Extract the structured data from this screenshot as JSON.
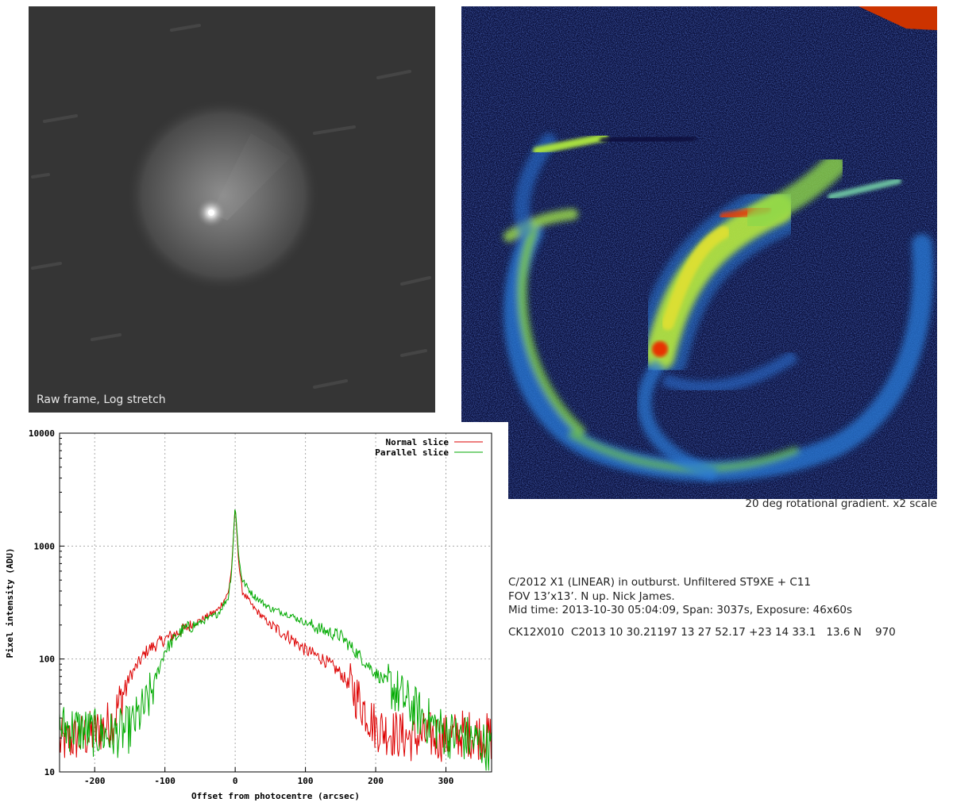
{
  "raw_panel": {
    "label": "Raw frame, Log stretch"
  },
  "gradient_panel": {
    "caption": "20 deg rotational gradient. x2 scale"
  },
  "info": {
    "line1": "C/2012 X1 (LINEAR) in outburst. Unfiltered ST9XE + C11",
    "line2": "FOV 13’x13’. N up. Nick James.",
    "line3": "Mid time: 2013-10-30 05:04:09, Span: 3037s, Exposure: 46x60s",
    "line4": "CK12X010  C2013 10 30.21197 13 27 52.17 +23 14 33.1   13.6 N    970"
  },
  "chart_data": {
    "type": "line",
    "xlabel": "Offset from photocentre (arcsec)",
    "ylabel": "Pixel intensity (ADU)",
    "xlim": [
      -250,
      365
    ],
    "ylim": [
      10,
      10000
    ],
    "yscale": "log",
    "grid": true,
    "legend": "top-right",
    "x_ticks": [
      "-200",
      "-100",
      "0",
      "100",
      "200",
      "300"
    ],
    "y_ticks": [
      "10",
      "100",
      "1000",
      "10000"
    ],
    "series": [
      {
        "name": "Normal slice",
        "color": "#dd0000",
        "x": [
          -250,
          -225,
          -200,
          -175,
          -150,
          -125,
          -100,
          -75,
          -50,
          -25,
          -10,
          -5,
          0,
          5,
          10,
          25,
          50,
          75,
          100,
          125,
          150,
          175,
          200,
          225,
          250,
          275,
          300,
          325,
          350,
          365
        ],
        "y": [
          18,
          20,
          22,
          28,
          70,
          120,
          150,
          180,
          220,
          270,
          380,
          650,
          2300,
          700,
          400,
          290,
          200,
          160,
          120,
          100,
          75,
          45,
          25,
          22,
          20,
          21,
          20,
          22,
          21,
          20
        ]
      },
      {
        "name": "Parallel slice",
        "color": "#00aa00",
        "x": [
          -250,
          -225,
          -200,
          -175,
          -150,
          -125,
          -100,
          -75,
          -50,
          -25,
          -10,
          -5,
          0,
          5,
          10,
          25,
          50,
          75,
          100,
          125,
          150,
          175,
          200,
          225,
          250,
          275,
          300,
          325,
          350,
          365
        ],
        "y": [
          25,
          24,
          22,
          21,
          24,
          40,
          120,
          180,
          210,
          250,
          350,
          600,
          2350,
          800,
          500,
          370,
          280,
          250,
          210,
          180,
          160,
          110,
          75,
          55,
          38,
          28,
          22,
          20,
          18,
          16
        ]
      }
    ]
  }
}
